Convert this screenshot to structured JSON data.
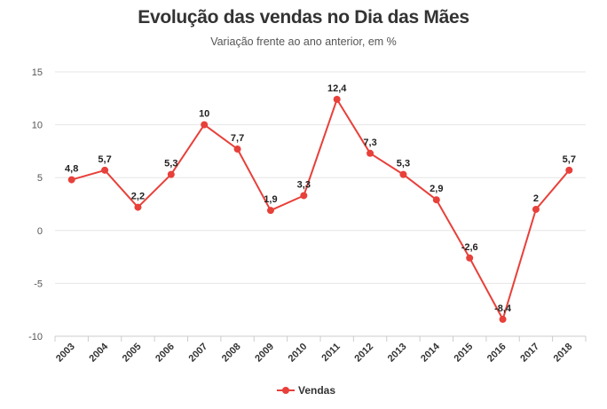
{
  "chart_data": {
    "type": "line",
    "title": "Evolução das vendas no Dia das Mães",
    "subtitle": "Variação frente ao ano anterior, em %",
    "categories": [
      "2003",
      "2004",
      "2005",
      "2006",
      "2007",
      "2008",
      "2009",
      "2010",
      "2011",
      "2012",
      "2013",
      "2014",
      "2015",
      "2016",
      "2017",
      "2018"
    ],
    "series": [
      {
        "name": "Vendas",
        "color": "#e8403a",
        "values": [
          4.8,
          5.7,
          2.2,
          5.3,
          10,
          7.7,
          1.9,
          3.3,
          12.4,
          7.3,
          5.3,
          2.9,
          -2.6,
          -8.4,
          2,
          5.7
        ],
        "labels": [
          "4,8",
          "5,7",
          "2,2",
          "5,3",
          "10",
          "7,7",
          "1,9",
          "3,3",
          "12,4",
          "7,3",
          "5,3",
          "2,9",
          "-2,6",
          "-8,4",
          "2",
          "5,7"
        ]
      }
    ],
    "ylim": [
      -10,
      15
    ],
    "yticks": [
      -10,
      -5,
      0,
      5,
      10,
      15
    ],
    "ytick_labels": [
      "-10",
      "-5",
      "0",
      "5",
      "10",
      "15"
    ],
    "grid": true,
    "legend": "bottom-center"
  }
}
